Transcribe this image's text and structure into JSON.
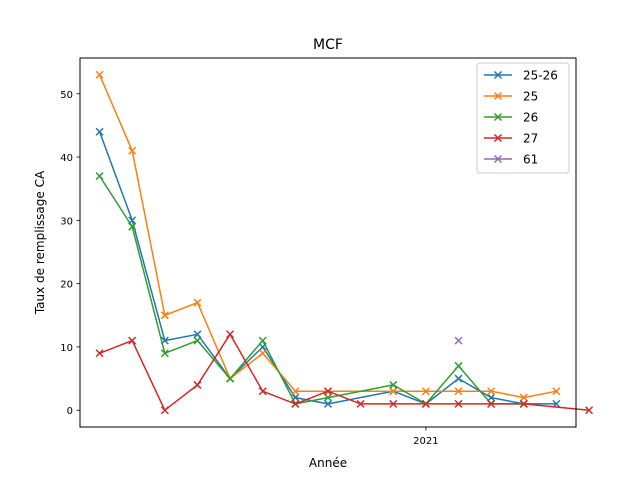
{
  "chart_data": {
    "type": "line",
    "title": "MCF",
    "xlabel": "Année",
    "ylabel": "Taux de remplissage CA",
    "x_ticks": [
      {
        "x": 2021,
        "label": "2021"
      }
    ],
    "y_ticks": [
      0,
      10,
      20,
      30,
      40,
      50
    ],
    "xlim": [
      2010.4,
      2025.6
    ],
    "ylim": [
      -2.65,
      55.65
    ],
    "grid": false,
    "legend_position": "top-right",
    "marker": "x",
    "series": [
      {
        "name": "25-26",
        "color": "#1f77b4",
        "points": [
          [
            2011,
            44
          ],
          [
            2012,
            30
          ],
          [
            2013,
            11
          ],
          [
            2014,
            12
          ],
          [
            2015,
            5
          ],
          [
            2016,
            10
          ],
          [
            2017,
            2
          ],
          [
            2018,
            1
          ],
          [
            2020,
            3
          ],
          [
            2021,
            1
          ],
          [
            2022,
            5
          ],
          [
            2023,
            2
          ],
          [
            2024,
            1
          ],
          [
            2025,
            1
          ]
        ]
      },
      {
        "name": "25",
        "color": "#ff7f0e",
        "points": [
          [
            2011,
            53
          ],
          [
            2012,
            41
          ],
          [
            2013,
            15
          ],
          [
            2014,
            17
          ],
          [
            2015,
            5
          ],
          [
            2016,
            9
          ],
          [
            2017,
            3
          ],
          [
            2018,
            3
          ],
          [
            2020,
            3
          ],
          [
            2021,
            3
          ],
          [
            2022,
            3
          ],
          [
            2023,
            3
          ],
          [
            2024,
            2
          ],
          [
            2025,
            3
          ]
        ]
      },
      {
        "name": "26",
        "color": "#2ca02c",
        "points": [
          [
            2011,
            37
          ],
          [
            2012,
            29
          ],
          [
            2013,
            9
          ],
          [
            2014,
            11
          ],
          [
            2015,
            5
          ],
          [
            2016,
            11
          ],
          [
            2017,
            1
          ],
          [
            2018,
            2
          ],
          [
            2020,
            4
          ],
          [
            2021,
            1
          ],
          [
            2022,
            7
          ],
          [
            2023,
            1
          ],
          [
            2024,
            1
          ]
        ]
      },
      {
        "name": "27",
        "color": "#d62728",
        "points": [
          [
            2011,
            9
          ],
          [
            2012,
            11
          ],
          [
            2013,
            0
          ],
          [
            2014,
            4
          ],
          [
            2015,
            12
          ],
          [
            2016,
            3
          ],
          [
            2017,
            1
          ],
          [
            2018,
            3
          ],
          [
            2019,
            1
          ],
          [
            2020,
            1
          ],
          [
            2021,
            1
          ],
          [
            2022,
            1
          ],
          [
            2023,
            1
          ],
          [
            2024,
            1
          ],
          [
            2026,
            0
          ]
        ]
      },
      {
        "name": "61",
        "color": "#9467bd",
        "points": [
          [
            2022,
            11
          ]
        ]
      }
    ]
  }
}
